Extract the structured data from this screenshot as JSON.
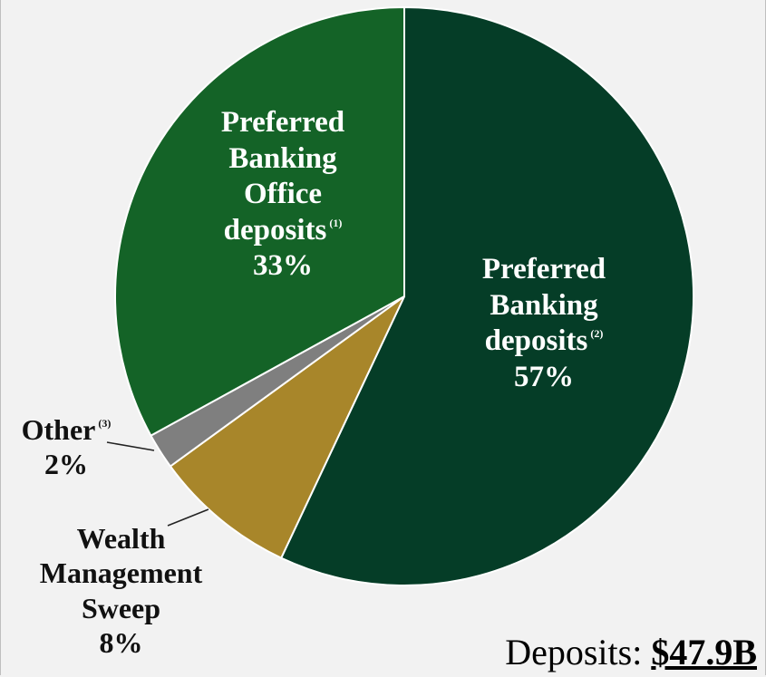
{
  "chart_data": {
    "type": "pie",
    "slices": [
      {
        "key": "pb",
        "label": [
          "Preferred",
          "Banking",
          "deposits"
        ],
        "note": "(2)",
        "value": 57,
        "value_label": "57%",
        "color": "#053d27"
      },
      {
        "key": "wm",
        "label": [
          "Wealth",
          "Management",
          "Sweep"
        ],
        "note": "",
        "value": 8,
        "value_label": "8%",
        "color": "#a8862a"
      },
      {
        "key": "other",
        "label": [
          "Other"
        ],
        "note": "(3)",
        "value": 2,
        "value_label": "2%",
        "color": "#7f7f7f"
      },
      {
        "key": "pbo",
        "label": [
          "Preferred",
          "Banking",
          "Office",
          "deposits"
        ],
        "note": "(1)",
        "value": 33,
        "value_label": "33%",
        "color": "#146327"
      }
    ],
    "start_angle_deg": 0,
    "direction": "clockwise"
  },
  "total": {
    "label": "Deposits:",
    "amount": "$47.9B"
  }
}
